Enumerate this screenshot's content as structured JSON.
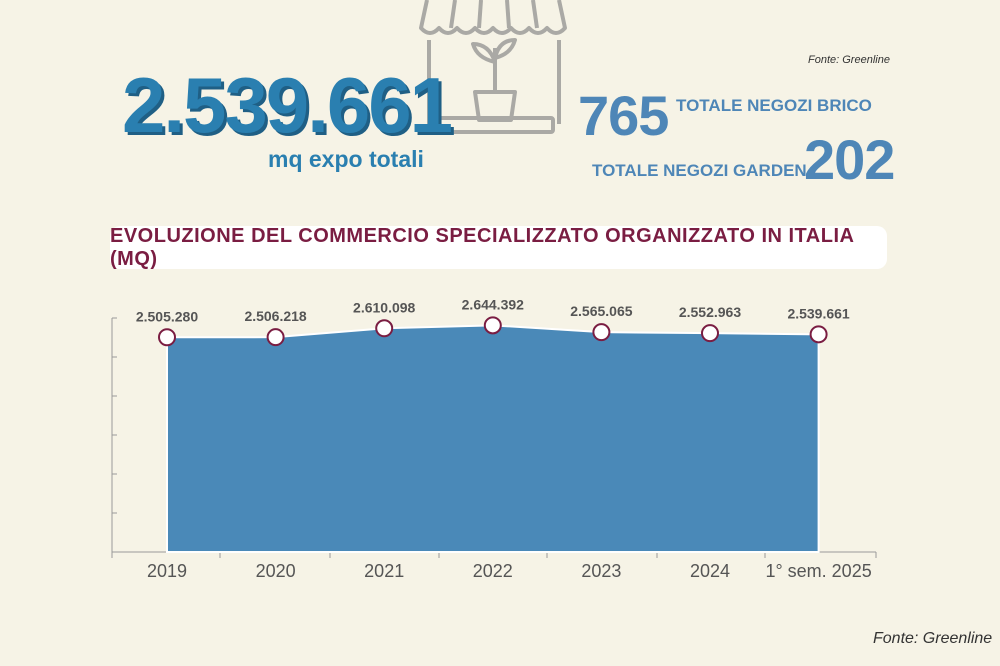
{
  "source": "Fonte: Greenline",
  "headline": {
    "total_mq": "2.539.661",
    "total_mq_label": "mq expo totali",
    "brico_value": "765",
    "brico_label": "TOTALE NEGOZI BRICO",
    "garden_label": "TOTALE  NEGOZI GARDEN",
    "garden_value": "202"
  },
  "icons": {
    "shop": "storefront-plant-icon"
  },
  "colors": {
    "area_fill": "#4a89b8",
    "marker_stroke": "#7a1d42",
    "title_text": "#7a1d42",
    "headline_blue": "#2a7fb0"
  },
  "chart_data": {
    "type": "area",
    "title": "EVOLUZIONE DEL COMMERCIO SPECIALIZZATO ORGANIZZATO IN ITALIA (MQ)",
    "categories": [
      "2019",
      "2020",
      "2021",
      "2022",
      "2023",
      "2024",
      "1° sem. 2025"
    ],
    "values": [
      2505280,
      2506218,
      2610098,
      2644392,
      2565065,
      2552963,
      2539661
    ],
    "data_labels": [
      "2.505.280",
      "2.506.218",
      "2.610.098",
      "2.644.392",
      "2.565.065",
      "2.552.963",
      "2.539.661"
    ],
    "ylim": [
      0,
      3000000
    ],
    "grid": false
  }
}
